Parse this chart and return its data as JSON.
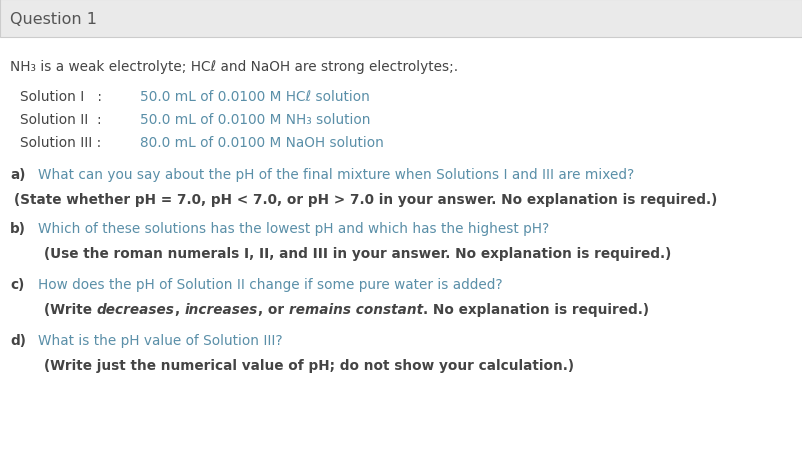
{
  "title": "Question 1",
  "title_bg": "#eaeaea",
  "bg_color": "#ffffff",
  "title_font_size": 11.5,
  "body_font_size": 9.8,
  "text_color_dark": "#444444",
  "text_color_blue": "#5a8fa8",
  "intro_line": "NH₃ is a weak electrolyte; HCℓ and NaOH are strong electrolytes;.",
  "solutions": [
    {
      "label": "Solution I   :",
      "desc": "50.0 mL of 0.0100 M HCℓ solution"
    },
    {
      "label": "Solution II  :",
      "desc": "50.0 mL of 0.0100 M NH₃ solution"
    },
    {
      "label": "Solution III :",
      "desc": "80.0 mL of 0.0100 M NaOH solution"
    }
  ],
  "qa": [
    {
      "letter": "a)",
      "question": "What can you say about the pH of the final mixture when Solutions I and III are mixed?",
      "note": "(State whether pH = 7.0, pH < 7.0, or pH > 7.0 in your answer. No explanation is required.)"
    },
    {
      "letter": "b)",
      "question": "Which of these solutions has the lowest pH and which has the highest pH?",
      "note": "(Use the roman numerals I, II, and III in your answer. No explanation is required.)"
    },
    {
      "letter": "c)",
      "question": "How does the pH of Solution II change if some pure water is added?",
      "note_parts": [
        {
          "text": "(Write ",
          "bold": true,
          "italic": false
        },
        {
          "text": "decreases",
          "bold": true,
          "italic": true
        },
        {
          "text": ", ",
          "bold": true,
          "italic": false
        },
        {
          "text": "increases",
          "bold": true,
          "italic": true
        },
        {
          "text": ", or ",
          "bold": true,
          "italic": false
        },
        {
          "text": "remains constant",
          "bold": true,
          "italic": true
        },
        {
          "text": ". No explanation is required.)",
          "bold": true,
          "italic": false
        }
      ]
    },
    {
      "letter": "d)",
      "question": "What is the pH value of Solution III?",
      "note": "(Write just the numerical value of pH; do not show your calculation.)"
    }
  ]
}
